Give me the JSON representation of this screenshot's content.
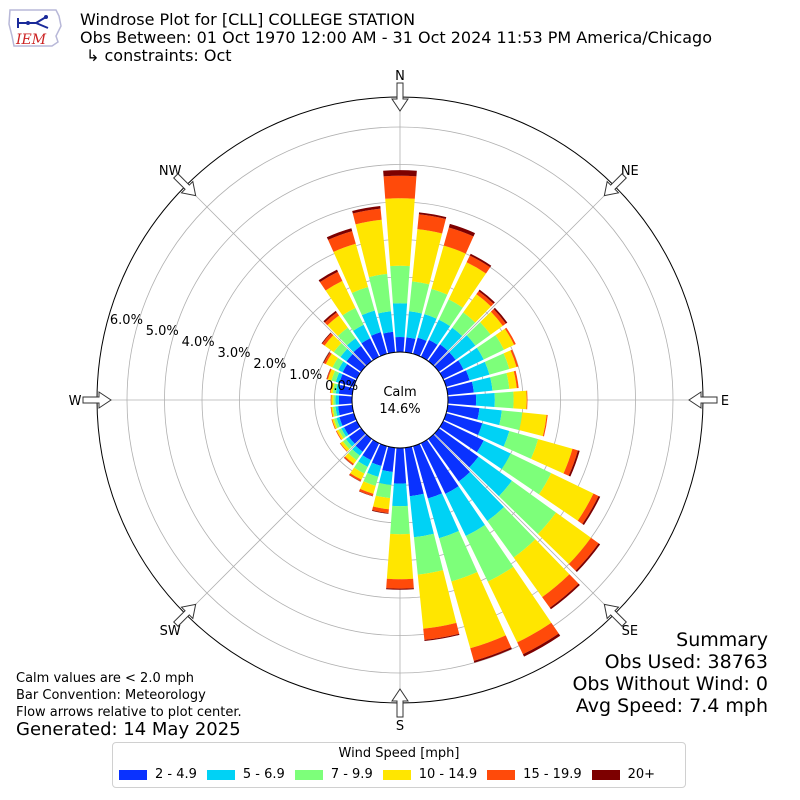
{
  "header": {
    "title": "Windrose Plot for [CLL] COLLEGE STATION",
    "obs_between": "Obs Between: 01 Oct 1970 12:00 AM - 31 Oct 2024 11:53 PM America/Chicago",
    "constraints": "↳ constraints: Oct",
    "logo_text": "IEM"
  },
  "summary": {
    "title": "Summary",
    "obs_used": "Obs Used: 38763",
    "obs_without_wind": "Obs Without Wind: 0",
    "avg_speed": "Avg Speed: 7.4 mph"
  },
  "notes": {
    "calm": "Calm values are < 2.0 mph",
    "bar_convention": "Bar Convention: Meteorology",
    "flow": "Flow arrows relative to plot center.",
    "generated": "Generated: 14 May 2025"
  },
  "chart_data": {
    "type": "windrose",
    "center_label": "Calm",
    "calm_percent": "14.6%",
    "radial_ticks": [
      "0.0%",
      "1.0%",
      "2.0%",
      "3.0%",
      "4.0%",
      "5.0%",
      "6.0%"
    ],
    "radial_max": 6.8,
    "compass_labels": [
      "N",
      "NE",
      "E",
      "SE",
      "S",
      "SW",
      "W",
      "NW"
    ],
    "legend_title": "Wind Speed [mph]",
    "speed_bins": [
      "2 - 4.9",
      "5 - 6.9",
      "7 - 9.9",
      "10 - 14.9",
      "15 - 19.9",
      "20+"
    ],
    "bin_colors": [
      "#0a32ff",
      "#00d2f5",
      "#7dff7a",
      "#ffe600",
      "#ff4a0a",
      "#7d0000"
    ],
    "directions_deg": [
      0,
      10,
      20,
      30,
      40,
      50,
      60,
      70,
      80,
      90,
      100,
      110,
      120,
      130,
      140,
      150,
      160,
      170,
      180,
      190,
      200,
      210,
      220,
      230,
      240,
      250,
      260,
      270,
      280,
      290,
      300,
      310,
      320,
      330,
      340,
      350
    ],
    "cumulative_percent": [
      [
        0.4,
        1.3,
        2.3,
        4.1,
        4.7,
        4.85
      ],
      [
        0.4,
        1.1,
        1.9,
        3.3,
        3.7,
        3.75
      ],
      [
        0.45,
        1.1,
        1.8,
        3.0,
        3.5,
        3.6
      ],
      [
        0.5,
        1.1,
        1.7,
        2.8,
        3.0,
        3.05
      ],
      [
        0.55,
        1.1,
        1.6,
        2.2,
        2.3,
        2.35
      ],
      [
        0.55,
        1.2,
        1.7,
        2.1,
        2.2,
        2.25
      ],
      [
        0.6,
        1.2,
        1.8,
        2.1,
        2.15,
        2.15
      ],
      [
        0.65,
        1.2,
        1.75,
        1.95,
        2.0,
        2.0
      ],
      [
        0.7,
        1.2,
        1.65,
        1.85,
        1.9,
        1.9
      ],
      [
        0.75,
        1.25,
        1.75,
        2.1,
        2.12,
        2.12
      ],
      [
        0.85,
        1.45,
        2.0,
        2.65,
        2.68,
        2.68
      ],
      [
        1.0,
        1.75,
        2.55,
        3.5,
        3.65,
        3.7
      ],
      [
        1.2,
        2.0,
        3.2,
        4.45,
        4.6,
        4.65
      ],
      [
        1.3,
        2.4,
        3.85,
        5.0,
        5.25,
        5.3
      ],
      [
        1.4,
        2.7,
        3.9,
        5.2,
        5.55,
        5.6
      ],
      [
        1.5,
        2.75,
        4.1,
        5.9,
        6.25,
        6.32
      ],
      [
        1.45,
        2.55,
        3.75,
        5.6,
        5.95,
        6.0
      ],
      [
        1.3,
        2.4,
        3.4,
        4.85,
        5.15,
        5.18
      ],
      [
        0.95,
        1.55,
        2.3,
        3.5,
        3.75,
        3.78
      ],
      [
        0.65,
        1.0,
        1.35,
        1.65,
        1.75,
        1.77
      ],
      [
        0.55,
        0.85,
        1.1,
        1.32,
        1.38,
        1.39
      ],
      [
        0.5,
        0.7,
        0.9,
        1.08,
        1.13,
        1.14
      ],
      [
        0.42,
        0.55,
        0.7,
        0.82,
        0.86,
        0.87
      ],
      [
        0.4,
        0.5,
        0.6,
        0.68,
        0.7,
        0.7
      ],
      [
        0.38,
        0.46,
        0.54,
        0.6,
        0.62,
        0.62
      ],
      [
        0.4,
        0.48,
        0.55,
        0.6,
        0.62,
        0.62
      ],
      [
        0.38,
        0.45,
        0.52,
        0.56,
        0.58,
        0.58
      ],
      [
        0.35,
        0.44,
        0.5,
        0.55,
        0.57,
        0.57
      ],
      [
        0.36,
        0.44,
        0.52,
        0.58,
        0.6,
        0.6
      ],
      [
        0.4,
        0.5,
        0.62,
        0.72,
        0.75,
        0.76
      ],
      [
        0.42,
        0.55,
        0.72,
        0.92,
        0.98,
        1.0
      ],
      [
        0.48,
        0.68,
        0.9,
        1.2,
        1.28,
        1.3
      ],
      [
        0.5,
        0.75,
        1.1,
        1.5,
        1.6,
        1.65
      ],
      [
        0.55,
        0.95,
        1.45,
        2.25,
        2.52,
        2.58
      ],
      [
        0.6,
        1.2,
        1.85,
        3.05,
        3.4,
        3.48
      ],
      [
        0.55,
        1.1,
        2.1,
        3.55,
        3.85,
        3.92
      ]
    ]
  }
}
